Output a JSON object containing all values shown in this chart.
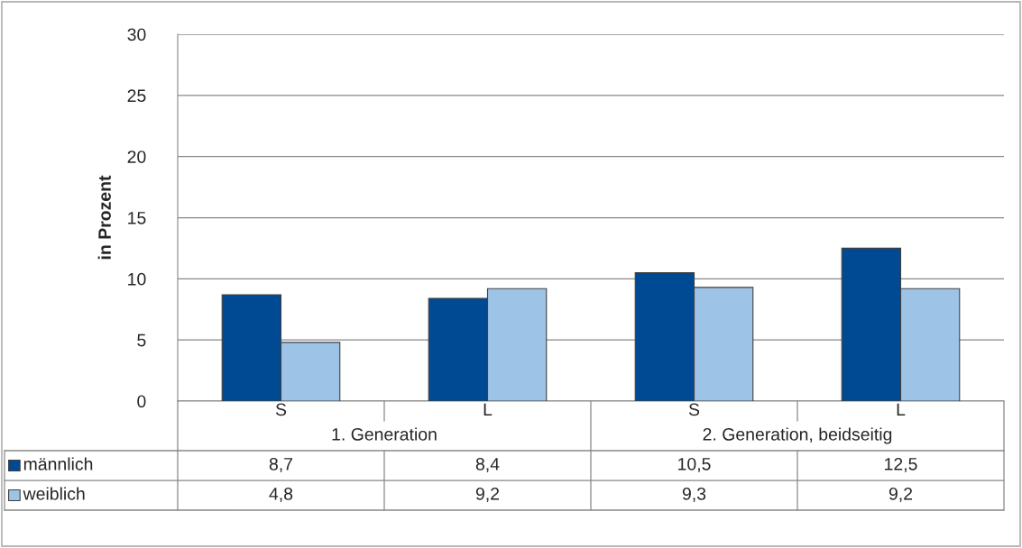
{
  "chart_data": {
    "type": "bar",
    "ylabel": "in Prozent",
    "categories": [
      "S",
      "L",
      "S",
      "L"
    ],
    "annotations": [
      "1. Generation",
      "2. Generation, beidseitig"
    ],
    "series": [
      {
        "name": "männlich",
        "color": "#004a93",
        "values": [
          8.7,
          8.4,
          10.5,
          12.5
        ],
        "value_labels": [
          "8,7",
          "8,4",
          "10,5",
          "12,5"
        ]
      },
      {
        "name": "weiblich",
        "color": "#9dc3e6",
        "values": [
          4.8,
          9.2,
          9.3,
          9.2
        ],
        "value_labels": [
          "4,8",
          "9,2",
          "9,3",
          "9,2"
        ]
      }
    ],
    "ylim": [
      0,
      30
    ],
    "yticks": [
      0,
      5,
      10,
      15,
      20,
      25,
      30
    ],
    "grid": "y",
    "legend": "bottom"
  }
}
